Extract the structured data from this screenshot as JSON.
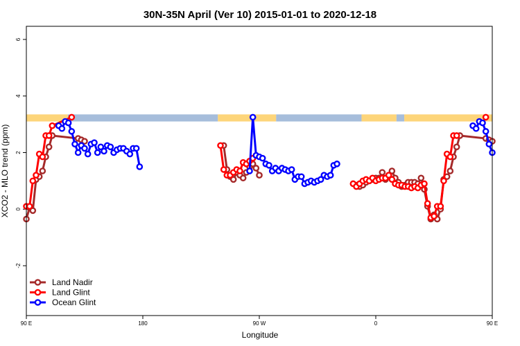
{
  "chart_data": {
    "type": "line",
    "title": "30N-35N April (Ver 10)   2015-01-01 to 2020-12-18",
    "xlabel": "Longitude",
    "ylabel": "XCO2 - MLO trend (ppm)",
    "xlim": [
      90,
      450
    ],
    "ylim": [
      -4,
      6.5
    ],
    "x_ticks": [
      {
        "value": 90,
        "label": "90 E"
      },
      {
        "value": 180,
        "label": "180"
      },
      {
        "value": 270,
        "label": "90 W"
      },
      {
        "value": 360,
        "label": "0"
      },
      {
        "value": 450,
        "label": "90 E"
      },
      {
        "value": 540,
        "label": "180"
      }
    ],
    "y_ticks": [
      -2,
      0,
      2,
      4,
      6
    ],
    "surface_band": {
      "y_range": [
        3.1,
        3.35
      ],
      "colors": {
        "land": "#FDD57A",
        "ocean": "#A6BDDB"
      },
      "segments": [
        {
          "from": 90,
          "to": 122,
          "type": "land"
        },
        {
          "from": 122,
          "to": 238,
          "type": "ocean"
        },
        {
          "from": 238,
          "to": 283,
          "type": "land"
        },
        {
          "from": 283,
          "to": 349,
          "type": "ocean"
        },
        {
          "from": 349,
          "to": 376,
          "type": "land"
        },
        {
          "from": 376,
          "to": 382,
          "type": "ocean"
        },
        {
          "from": 382,
          "to": 483,
          "type": "land"
        },
        {
          "from": 483,
          "to": 540,
          "type": "ocean"
        }
      ]
    },
    "series": [
      {
        "name": "Land Nadir",
        "color": "#A52A2A",
        "points": [
          [
            90,
            -0.35
          ],
          [
            92.5,
            0.05
          ],
          [
            95,
            -0.05
          ],
          [
            97.5,
            1.05
          ],
          [
            100,
            1.15
          ],
          [
            102.5,
            1.35
          ],
          [
            105,
            1.85
          ],
          [
            107.5,
            2.2
          ],
          [
            110,
            2.6
          ],
          [
            130,
            2.5
          ],
          [
            132.5,
            2.45
          ],
          [
            135,
            2.4
          ],
          [
            242.5,
            2.25
          ],
          [
            245,
            1.4
          ],
          [
            247.5,
            1.15
          ],
          [
            250,
            1.05
          ],
          [
            252.5,
            1.3
          ],
          [
            255,
            1.2
          ],
          [
            257.5,
            1.1
          ],
          [
            260,
            1.3
          ],
          [
            262.5,
            1.5
          ],
          [
            265,
            1.6
          ],
          [
            267.5,
            1.45
          ],
          [
            270,
            1.2
          ],
          [
            345,
            0.85
          ],
          [
            347.5,
            0.8
          ],
          [
            350,
            0.85
          ],
          [
            352.5,
            0.95
          ],
          [
            355,
            1.0
          ],
          [
            357.5,
            1.05
          ],
          [
            360,
            1.1
          ],
          [
            362.5,
            1.1
          ],
          [
            365,
            1.3
          ],
          [
            367.5,
            1.05
          ],
          [
            370,
            1.2
          ],
          [
            372.5,
            1.35
          ],
          [
            375,
            1.1
          ],
          [
            377.5,
            0.95
          ],
          [
            380,
            0.8
          ],
          [
            382.5,
            0.85
          ],
          [
            385,
            0.95
          ],
          [
            387.5,
            0.95
          ],
          [
            390,
            0.95
          ],
          [
            392.5,
            0.9
          ],
          [
            395,
            1.1
          ],
          [
            397.5,
            0.7
          ],
          [
            400,
            0.1
          ],
          [
            402.5,
            -0.35
          ],
          [
            405,
            -0.2
          ],
          [
            407.5,
            -0.35
          ],
          [
            410,
            0.0
          ],
          [
            412.5,
            1.05
          ],
          [
            415,
            1.15
          ],
          [
            417.5,
            1.35
          ],
          [
            420,
            1.85
          ],
          [
            422.5,
            2.2
          ],
          [
            425,
            2.6
          ],
          [
            445,
            2.5
          ],
          [
            447.5,
            2.45
          ],
          [
            450,
            2.4
          ]
        ]
      },
      {
        "name": "Land Glint",
        "color": "#FF0000",
        "points": [
          [
            90,
            0.1
          ],
          [
            92.5,
            0.1
          ],
          [
            95,
            1.0
          ],
          [
            97.5,
            1.2
          ],
          [
            100,
            1.95
          ],
          [
            102.5,
            1.85
          ],
          [
            105,
            2.6
          ],
          [
            107.5,
            2.6
          ],
          [
            110,
            2.95
          ],
          [
            125,
            3.25
          ],
          [
            240,
            2.25
          ],
          [
            242.5,
            1.4
          ],
          [
            245,
            1.2
          ],
          [
            247.5,
            1.2
          ],
          [
            250,
            1.3
          ],
          [
            252.5,
            1.4
          ],
          [
            255,
            1.35
          ],
          [
            257.5,
            1.65
          ],
          [
            260,
            1.6
          ],
          [
            262.5,
            1.7
          ],
          [
            265,
            1.8
          ],
          [
            267.5,
            1.9
          ],
          [
            342.5,
            0.9
          ],
          [
            345,
            0.8
          ],
          [
            347.5,
            0.9
          ],
          [
            350,
            1.0
          ],
          [
            352.5,
            1.05
          ],
          [
            355,
            1.0
          ],
          [
            357.5,
            1.1
          ],
          [
            360,
            1.0
          ],
          [
            362.5,
            1.05
          ],
          [
            365,
            1.1
          ],
          [
            367.5,
            1.1
          ],
          [
            370,
            1.2
          ],
          [
            372.5,
            1.05
          ],
          [
            375,
            0.9
          ],
          [
            377.5,
            0.85
          ],
          [
            380,
            0.85
          ],
          [
            382.5,
            0.8
          ],
          [
            385,
            0.8
          ],
          [
            387.5,
            0.75
          ],
          [
            390,
            0.8
          ],
          [
            392.5,
            0.75
          ],
          [
            395,
            0.85
          ],
          [
            397.5,
            0.9
          ],
          [
            400,
            0.2
          ],
          [
            402.5,
            -0.3
          ],
          [
            405,
            -0.25
          ],
          [
            407.5,
            0.1
          ],
          [
            410,
            0.1
          ],
          [
            412.5,
            1.0
          ],
          [
            415,
            1.95
          ],
          [
            417.5,
            1.85
          ],
          [
            420,
            2.6
          ],
          [
            422.5,
            2.6
          ],
          [
            445,
            3.25
          ]
        ]
      },
      {
        "name": "Ocean Glint",
        "color": "#0000FF",
        "points": [
          [
            115,
            2.95
          ],
          [
            117.5,
            2.85
          ],
          [
            120,
            3.1
          ],
          [
            122.5,
            3.05
          ],
          [
            125,
            2.75
          ],
          [
            127.5,
            2.3
          ],
          [
            130,
            2.0
          ],
          [
            132.5,
            2.25
          ],
          [
            135,
            2.15
          ],
          [
            137.5,
            1.95
          ],
          [
            140,
            2.3
          ],
          [
            142.5,
            2.35
          ],
          [
            145,
            2.0
          ],
          [
            147.5,
            2.2
          ],
          [
            150,
            2.05
          ],
          [
            152.5,
            2.25
          ],
          [
            155,
            2.2
          ],
          [
            157.5,
            2.0
          ],
          [
            160,
            2.1
          ],
          [
            162.5,
            2.15
          ],
          [
            165,
            2.15
          ],
          [
            167.5,
            2.05
          ],
          [
            170,
            1.95
          ],
          [
            172.5,
            2.15
          ],
          [
            175,
            2.15
          ],
          [
            177.5,
            1.5
          ],
          [
            262.5,
            1.35
          ],
          [
            265,
            3.25
          ],
          [
            267.5,
            1.9
          ],
          [
            270,
            1.85
          ],
          [
            272.5,
            1.8
          ],
          [
            275,
            1.6
          ],
          [
            277.5,
            1.55
          ],
          [
            280,
            1.35
          ],
          [
            282.5,
            1.45
          ],
          [
            285,
            1.35
          ],
          [
            287.5,
            1.45
          ],
          [
            290,
            1.4
          ],
          [
            292.5,
            1.35
          ],
          [
            295,
            1.4
          ],
          [
            297.5,
            1.05
          ],
          [
            300,
            1.15
          ],
          [
            302.5,
            1.15
          ],
          [
            305,
            0.9
          ],
          [
            307.5,
            0.95
          ],
          [
            310,
            1.0
          ],
          [
            312.5,
            0.95
          ],
          [
            315,
            1.0
          ],
          [
            317.5,
            1.05
          ],
          [
            320,
            1.2
          ],
          [
            322.5,
            1.15
          ],
          [
            325,
            1.2
          ],
          [
            327.5,
            1.55
          ],
          [
            330,
            1.6
          ],
          [
            435,
            2.95
          ],
          [
            437.5,
            2.85
          ],
          [
            440,
            3.1
          ],
          [
            442.5,
            3.05
          ],
          [
            445,
            2.75
          ],
          [
            447.5,
            2.3
          ],
          [
            450,
            2.0
          ],
          [
            452.5,
            2.25
          ],
          [
            455,
            2.15
          ],
          [
            457.5,
            1.95
          ],
          [
            460,
            2.3
          ],
          [
            462.5,
            2.35
          ]
        ]
      }
    ],
    "legend": {
      "position": "bottom-left"
    }
  }
}
